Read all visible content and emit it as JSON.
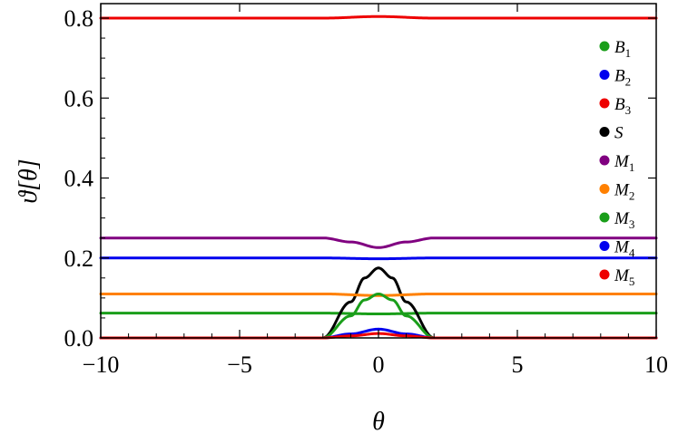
{
  "chart_data": {
    "type": "line",
    "xlabel": "θ",
    "ylabel": "ϑ[θ]",
    "xlim": [
      -10,
      10
    ],
    "ylim": [
      0,
      0.8
    ],
    "x_ticks": [
      -10,
      -5,
      0,
      5,
      10
    ],
    "x_tick_labels": [
      "−10",
      "−5",
      "0",
      "5",
      "10"
    ],
    "y_ticks": [
      0.0,
      0.2,
      0.4,
      0.6,
      0.8
    ],
    "y_tick_labels": [
      "0.0",
      "0.2",
      "0.4",
      "0.6",
      "0.8"
    ],
    "grid": false,
    "legend_position": "right",
    "series": [
      {
        "name": "B1",
        "name_base": "B",
        "name_sub": "1",
        "color": "#1a9e1a",
        "x": [
          -10,
          -2,
          0,
          2,
          10
        ],
        "y": [
          0.062,
          0.062,
          0.06,
          0.062,
          0.062
        ]
      },
      {
        "name": "B2",
        "name_base": "B",
        "name_sub": "2",
        "color": "#0000ee",
        "x": [
          -10,
          -2,
          0,
          2,
          10
        ],
        "y": [
          0.2,
          0.2,
          0.198,
          0.2,
          0.2
        ]
      },
      {
        "name": "B3",
        "name_base": "B",
        "name_sub": "3",
        "color": "#ee0000",
        "x": [
          -10,
          -2,
          0,
          2,
          10
        ],
        "y": [
          0.8,
          0.8,
          0.804,
          0.8,
          0.8
        ]
      },
      {
        "name": "S",
        "name_base": "S",
        "name_sub": "",
        "color": "#000000",
        "x": [
          -10,
          -2,
          -1,
          -0.5,
          0,
          0.5,
          1,
          2,
          10
        ],
        "y": [
          0.0,
          0.0,
          0.09,
          0.15,
          0.175,
          0.15,
          0.09,
          0.0,
          0.0
        ]
      },
      {
        "name": "M1",
        "name_base": "M",
        "name_sub": "1",
        "color": "#800080",
        "x": [
          -10,
          -2,
          -1,
          0,
          1,
          2,
          10
        ],
        "y": [
          0.25,
          0.25,
          0.24,
          0.226,
          0.24,
          0.25,
          0.25
        ]
      },
      {
        "name": "M2",
        "name_base": "M",
        "name_sub": "2",
        "color": "#ff8000",
        "x": [
          -10,
          -2,
          0,
          2,
          10
        ],
        "y": [
          0.11,
          0.11,
          0.106,
          0.11,
          0.11
        ]
      },
      {
        "name": "M3",
        "name_base": "M",
        "name_sub": "3",
        "color": "#1a9e1a",
        "x": [
          -10,
          -2,
          -1,
          -0.5,
          0,
          0.5,
          1,
          2,
          10
        ],
        "y": [
          0.0,
          0.0,
          0.055,
          0.095,
          0.11,
          0.095,
          0.055,
          0.0,
          0.0
        ]
      },
      {
        "name": "M4",
        "name_base": "M",
        "name_sub": "4",
        "color": "#0000ee",
        "x": [
          -10,
          -2,
          -1,
          0,
          1,
          2,
          10
        ],
        "y": [
          0.0,
          0.0,
          0.01,
          0.022,
          0.01,
          0.0,
          0.0
        ]
      },
      {
        "name": "M5",
        "name_base": "M",
        "name_sub": "5",
        "color": "#ee0000",
        "x": [
          -10,
          -2,
          -1,
          0,
          1,
          2,
          10
        ],
        "y": [
          0.0,
          0.0,
          0.005,
          0.011,
          0.005,
          0.0,
          0.0
        ]
      }
    ]
  }
}
